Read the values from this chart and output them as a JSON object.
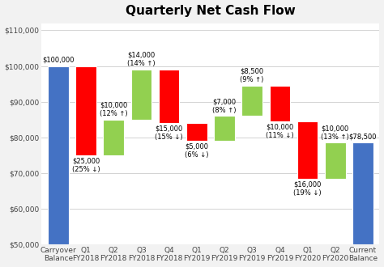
{
  "title": "Quarterly Net Cash Flow",
  "categories": [
    "Carryover\nBalance",
    "Q1\nFY2018",
    "Q2\nFY2018",
    "Q3\nFY2018",
    "Q4\nFY2018",
    "Q1\nFY2019",
    "Q2\nFY2019",
    "Q3\nFY2019",
    "Q4\nFY2019",
    "Q1\nFY2020",
    "Q2\nFY2020",
    "Current\nBalance"
  ],
  "base_values": [
    50000,
    75000,
    75000,
    85000,
    84000,
    79000,
    79000,
    86000,
    84500,
    68500,
    68500,
    50000
  ],
  "bar_heights": [
    50000,
    25000,
    10000,
    14000,
    15000,
    5000,
    7000,
    8500,
    10000,
    16000,
    10000,
    28500
  ],
  "bar_colors": [
    "#4472C4",
    "#FF0000",
    "#92D050",
    "#92D050",
    "#FF0000",
    "#FF0000",
    "#92D050",
    "#92D050",
    "#FF0000",
    "#FF0000",
    "#92D050",
    "#4472C4"
  ],
  "annotations": [
    "$100,000",
    "$25,000\n(25% ↓)",
    "$10,000\n(12% ↑)",
    "$14,000\n(14% ↑)",
    "$15,000\n(15% ↓)",
    "$5,000\n(6% ↓)",
    "$7,000\n(8% ↑)",
    "$8,500\n(9% ↑)",
    "$10,000\n(11% ↓)",
    "$16,000\n(19% ↓)",
    "$10,000\n(13% ↑)",
    "$78,500"
  ],
  "ann_above": [
    true,
    false,
    true,
    true,
    false,
    false,
    true,
    true,
    false,
    false,
    true,
    true
  ],
  "ylim": [
    50000,
    112000
  ],
  "yticks": [
    50000,
    60000,
    70000,
    80000,
    90000,
    100000,
    110000
  ],
  "ytick_labels": [
    "$50,000",
    "$60,000",
    "$70,000",
    "$80,000",
    "$90,000",
    "$100,000",
    "$110,000"
  ],
  "background_color": "#F2F2F2",
  "plot_bg_color": "#FFFFFF",
  "grid_color": "#CCCCCC",
  "title_fontsize": 11,
  "tick_fontsize": 6.5,
  "ann_fontsize": 6,
  "bar_width": 0.75
}
